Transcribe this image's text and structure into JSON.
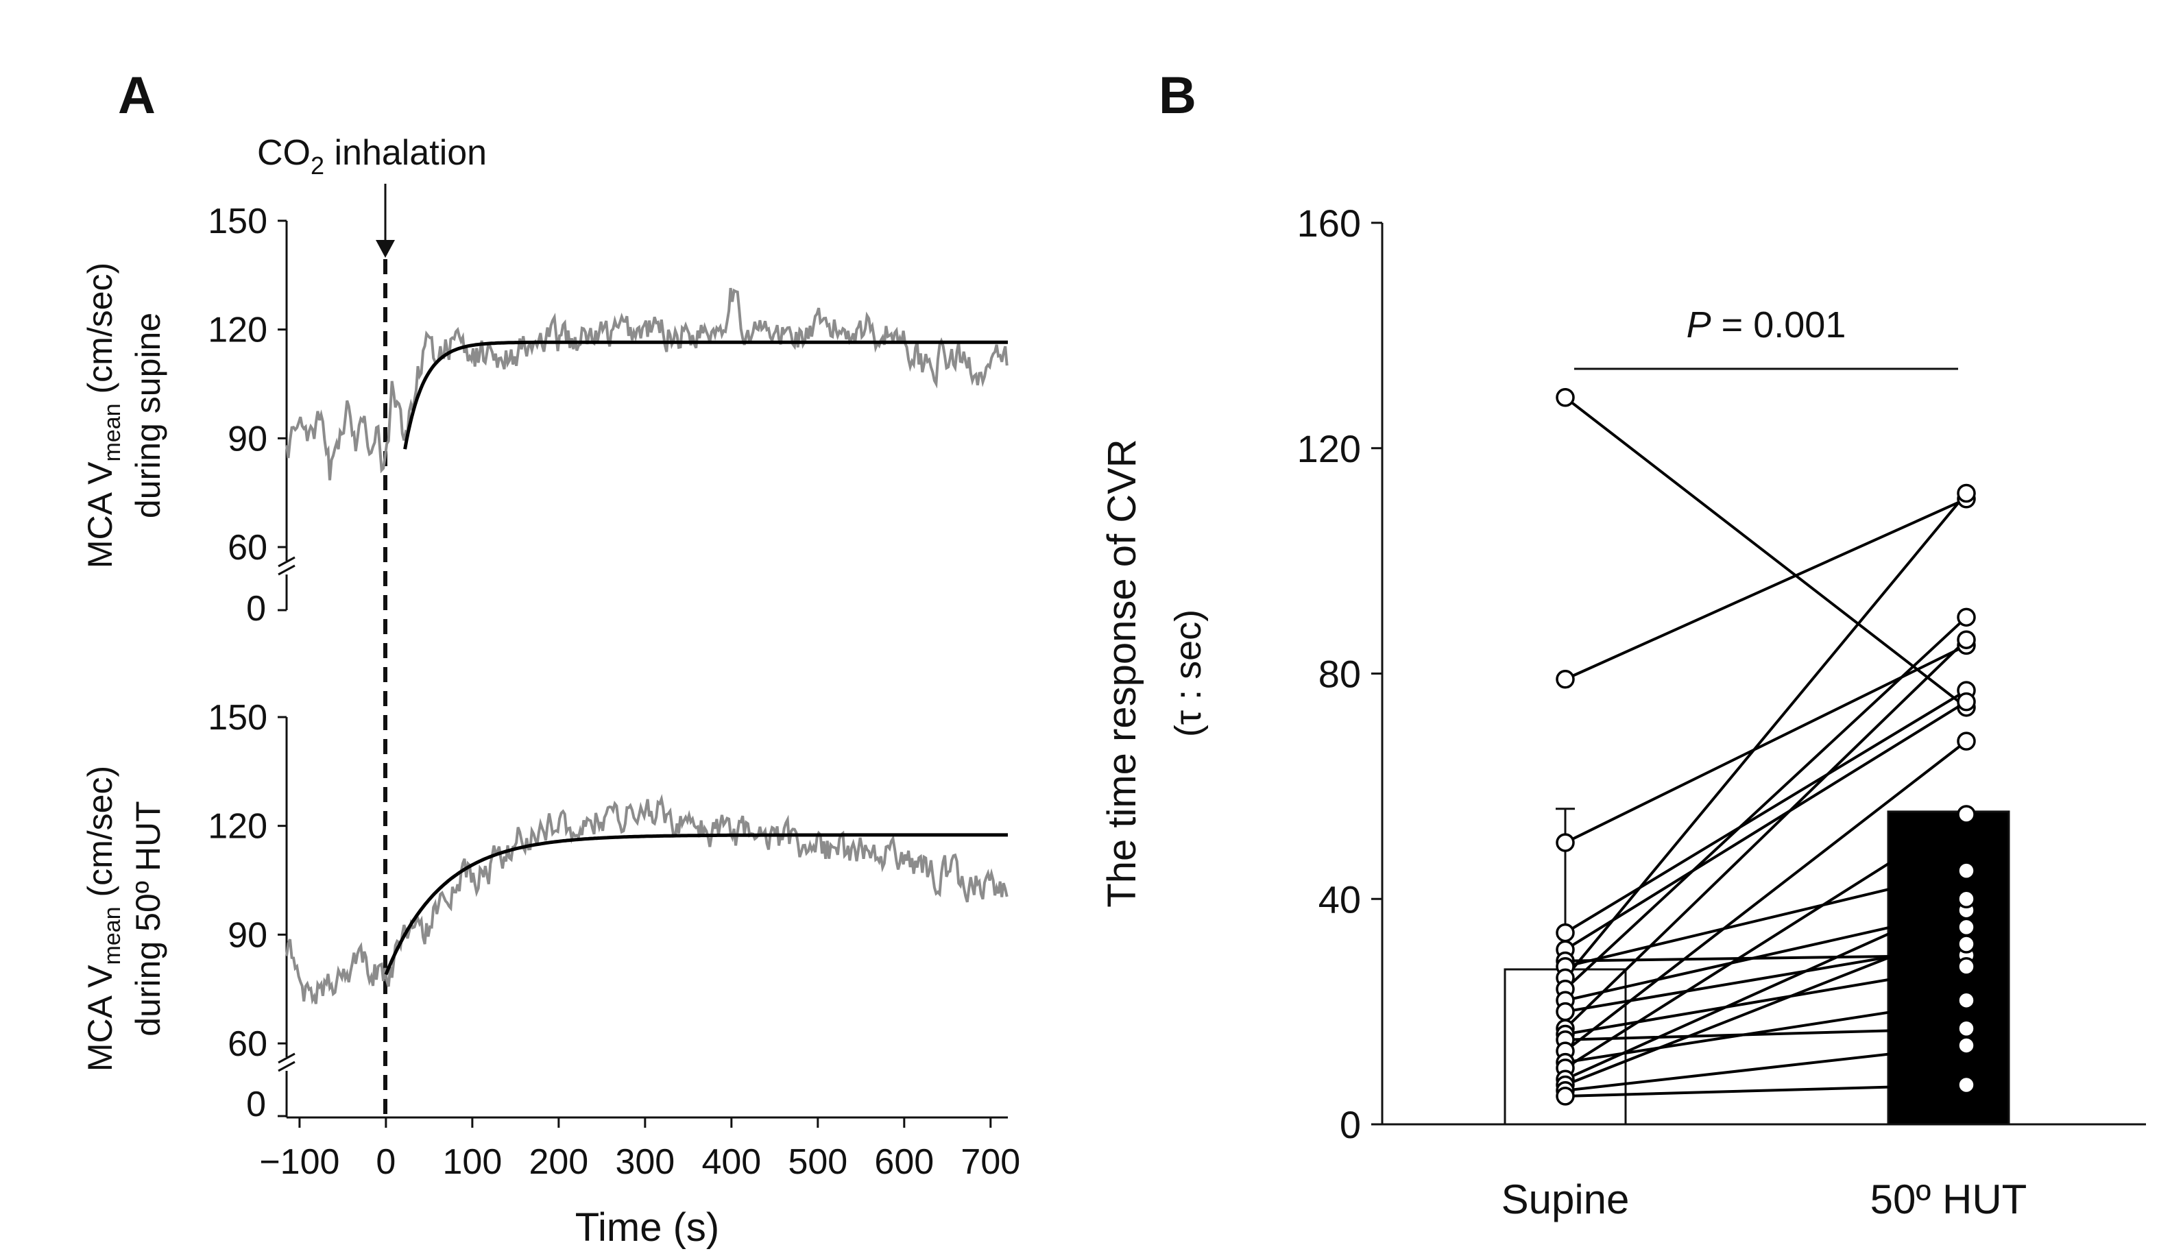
{
  "panels": {
    "a_label": "A",
    "b_label": "B"
  },
  "chart_data": [
    {
      "type": "line",
      "panel": "A",
      "title": "",
      "annotation": {
        "text_main": "CO",
        "text_sub": "2",
        "text_rest": " inhalation",
        "x": 0
      },
      "xlabel": "Time (s)",
      "xlim": [
        -115,
        720
      ],
      "xticks": [
        -100,
        0,
        100,
        200,
        300,
        400,
        500,
        600,
        700
      ],
      "xtick_labels": [
        "−100",
        "0",
        "100",
        "200",
        "300",
        "400",
        "500",
        "600",
        "700"
      ],
      "subplots": [
        {
          "name": "supine",
          "ylabel_line1_main": "MCA V",
          "ylabel_line1_sub": "mean",
          "ylabel_line1_rest": " (cm/sec)",
          "ylabel_line2": "during supine",
          "yticks": [
            60,
            90,
            120,
            150
          ],
          "ybreak_label": "0",
          "ylim": [
            60,
            150
          ],
          "raw_trace": {
            "color": "#8c8c8c",
            "keypoints": [
              [
                -115,
                86
              ],
              [
                -105,
                92
              ],
              [
                -95,
                97
              ],
              [
                -85,
                88
              ],
              [
                -75,
                94
              ],
              [
                -65,
                80
              ],
              [
                -55,
                90
              ],
              [
                -45,
                96
              ],
              [
                -35,
                90
              ],
              [
                -25,
                101
              ],
              [
                -18,
                84
              ],
              [
                -10,
                99
              ],
              [
                -5,
                81
              ],
              [
                0,
                84
              ],
              [
                8,
                104
              ],
              [
                15,
                96
              ],
              [
                22,
                86
              ],
              [
                30,
                100
              ],
              [
                40,
                110
              ],
              [
                50,
                120
              ],
              [
                60,
                112
              ],
              [
                70,
                117
              ],
              [
                100,
                112
              ],
              [
                150,
                114
              ],
              [
                200,
                117
              ],
              [
                250,
                118
              ],
              [
                300,
                120
              ],
              [
                350,
                119
              ],
              [
                390,
                122
              ],
              [
                400,
                133
              ],
              [
                410,
                121
              ],
              [
                450,
                118
              ],
              [
                500,
                119
              ],
              [
                550,
                121
              ],
              [
                600,
                118
              ],
              [
                620,
                111
              ],
              [
                650,
                112
              ],
              [
                700,
                109
              ],
              [
                720,
                111
              ]
            ]
          },
          "fit": {
            "color": "#000000",
            "baseline": 87,
            "start": 22,
            "plateau": 116.5,
            "tau": 22
          }
        },
        {
          "name": "tilt",
          "ylabel_line1_main": "MCA V",
          "ylabel_line1_sub": "mean",
          "ylabel_line1_rest": " (cm/sec)",
          "ylabel_line2": "during 50º HUT",
          "yticks": [
            60,
            90,
            120,
            150
          ],
          "ybreak_label": "0",
          "ylim": [
            60,
            150
          ],
          "raw_trace": {
            "color": "#8c8c8c",
            "keypoints": [
              [
                -115,
                88
              ],
              [
                -100,
                76
              ],
              [
                -80,
                74
              ],
              [
                -60,
                78
              ],
              [
                -40,
                80
              ],
              [
                -20,
                82
              ],
              [
                0,
                79
              ],
              [
                20,
                87
              ],
              [
                50,
                93
              ],
              [
                80,
                103
              ],
              [
                100,
                107
              ],
              [
                130,
                110
              ],
              [
                160,
                118
              ],
              [
                200,
                121
              ],
              [
                250,
                122
              ],
              [
                300,
                124
              ],
              [
                330,
                123
              ],
              [
                350,
                119
              ],
              [
                400,
                117
              ],
              [
                450,
                116
              ],
              [
                500,
                114
              ],
              [
                550,
                112
              ],
              [
                600,
                111
              ],
              [
                650,
                106
              ],
              [
                700,
                104
              ],
              [
                720,
                103
              ]
            ]
          },
          "fit": {
            "color": "#000000",
            "baseline": 79,
            "start": 0,
            "plateau": 117.5,
            "tau": 65
          }
        }
      ]
    },
    {
      "type": "bar",
      "panel": "B",
      "ylabel_line1": "The time response of CVR",
      "ylabel_line2": "(τ : sec)",
      "ylim": [
        0,
        160
      ],
      "yticks": [
        0,
        40,
        80,
        120,
        160
      ],
      "categories": [
        "Supine",
        "50º HUT"
      ],
      "means": [
        27.5,
        55.5
      ],
      "sd_upper": [
        56,
        0
      ],
      "bar_colors": [
        "#ffffff",
        "#000000"
      ],
      "significance": {
        "label_italic": "P",
        "label_rest": " = 0.001"
      },
      "pairs": [
        [
          129,
          74
        ],
        [
          79,
          111
        ],
        [
          50,
          85
        ],
        [
          34,
          77
        ],
        [
          31,
          75
        ],
        [
          29,
          30
        ],
        [
          28,
          45
        ],
        [
          26,
          112
        ],
        [
          24,
          90
        ],
        [
          22,
          38
        ],
        [
          20,
          32
        ],
        [
          17,
          86
        ],
        [
          16,
          28
        ],
        [
          15,
          17
        ],
        [
          13,
          68
        ],
        [
          11,
          22
        ],
        [
          10,
          55
        ],
        [
          8,
          40
        ],
        [
          7,
          35
        ],
        [
          6,
          14
        ],
        [
          5,
          7
        ]
      ]
    }
  ]
}
